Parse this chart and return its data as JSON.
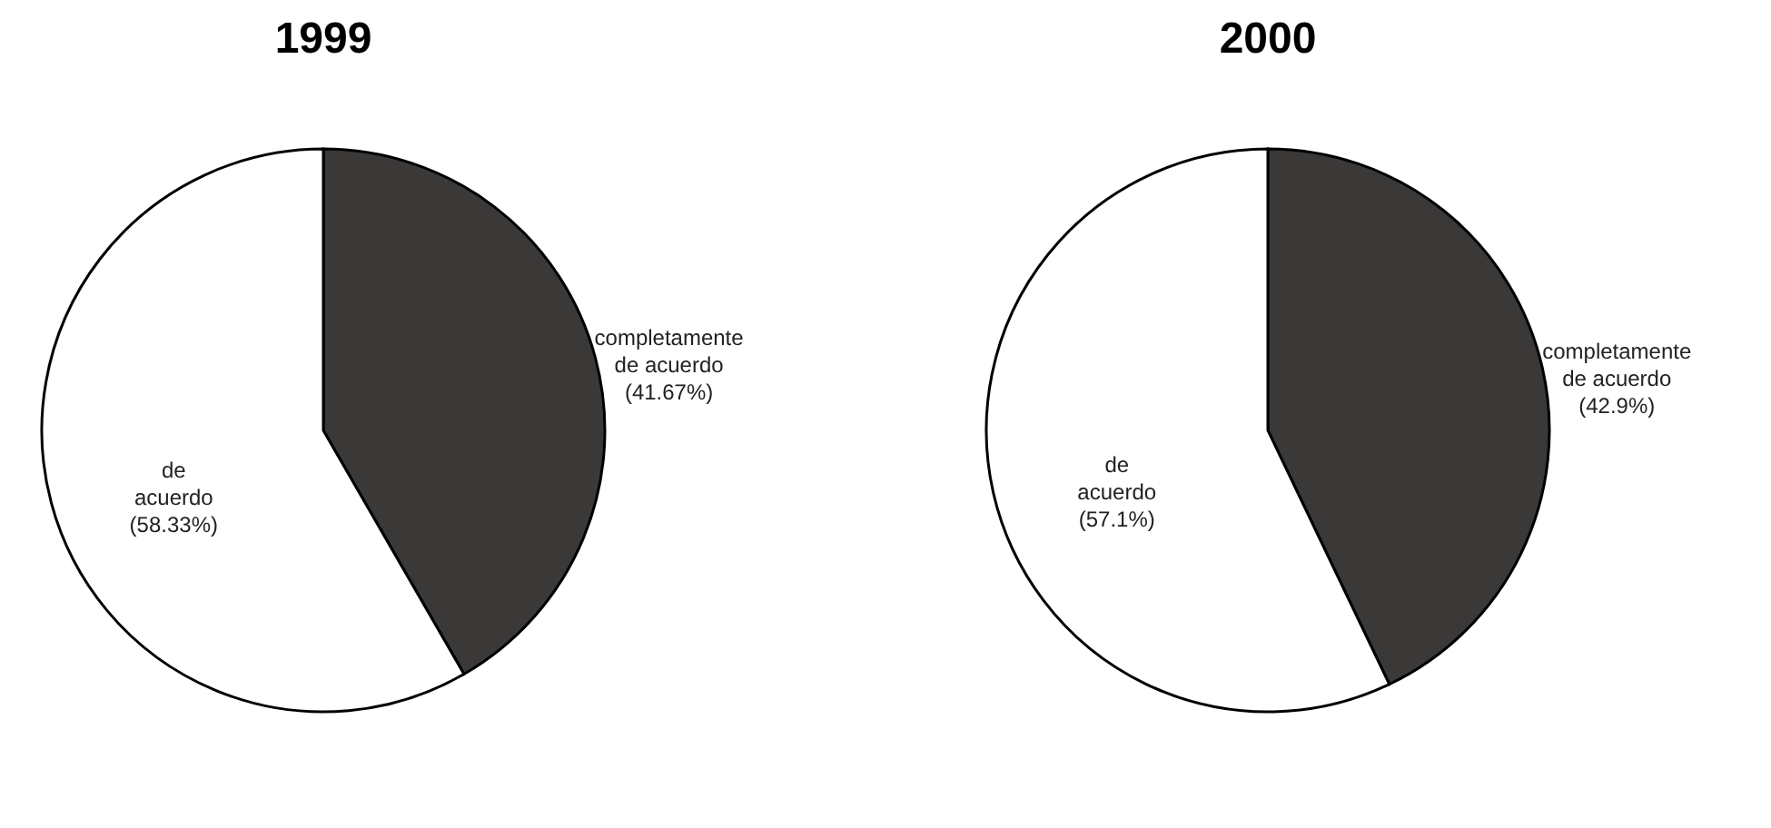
{
  "chart_data": [
    {
      "type": "pie",
      "title": "1999",
      "categories": [
        "completamente de acuerdo",
        "de acuerdo"
      ],
      "values": [
        41.67,
        58.33
      ],
      "colors": [
        "#3b3838",
        "#ffffff"
      ],
      "value_labels": [
        "(41.67%)",
        "(58.33%)"
      ]
    },
    {
      "type": "pie",
      "title": "2000",
      "categories": [
        "completamente de acuerdo",
        "de acuerdo"
      ],
      "values": [
        42.9,
        57.1
      ],
      "colors": [
        "#3b3838",
        "#ffffff"
      ],
      "value_labels": [
        "(42.9%)",
        "(57.1%)"
      ]
    }
  ]
}
